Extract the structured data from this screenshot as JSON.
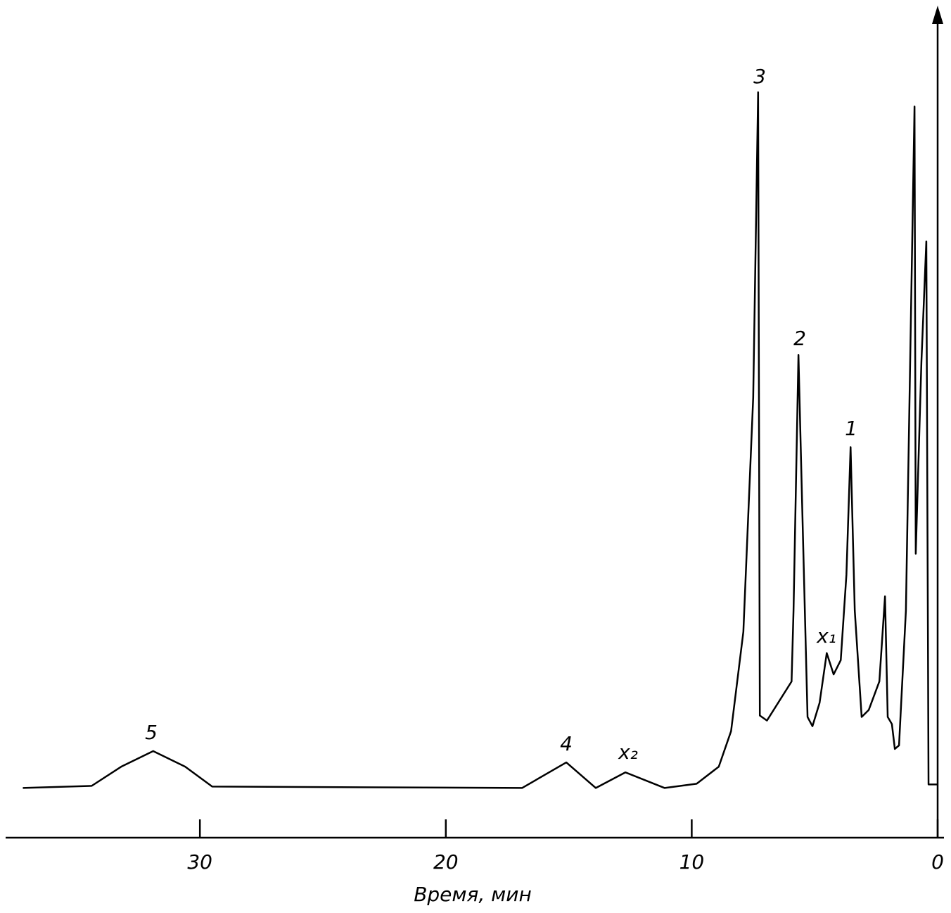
{
  "chart_data": {
    "type": "line",
    "x_label": "Время, мин",
    "xlim": [
      37.9,
      0
    ],
    "ylim": [
      -7,
      110
    ],
    "xticks": [
      30,
      20,
      10,
      0
    ],
    "x": [
      37.2,
      34.4,
      33.2,
      31.9,
      30.6,
      29.5,
      16.9,
      15.1,
      13.9,
      12.7,
      11.1,
      9.8,
      8.9,
      8.4,
      7.9,
      7.5,
      7.3,
      7.23,
      6.94,
      5.94,
      5.86,
      5.66,
      5.51,
      5.29,
      5.09,
      4.8,
      4.51,
      4.23,
      3.94,
      3.71,
      3.54,
      3.37,
      3.09,
      2.8,
      2.37,
      2.14,
      2.03,
      1.86,
      1.74,
      1.57,
      1.29,
      0.94,
      0.89,
      0.66,
      0.46,
      0.37,
      0
    ],
    "series": [
      {
        "color": "#000000",
        "values": [
          0,
          0.3,
          3,
          5.2,
          3,
          0.2,
          0,
          3.6,
          0,
          2.2,
          0,
          0.6,
          3,
          8,
          22,
          55,
          98,
          10.2,
          9.5,
          15,
          25,
          61,
          40,
          10,
          8.7,
          12,
          19,
          16,
          18,
          30,
          48,
          25,
          10,
          11,
          15,
          27,
          10,
          9,
          5.5,
          6,
          25,
          96,
          33,
          60,
          77,
          0.5,
          0.5
        ]
      }
    ],
    "annotations": [
      "5",
      "4",
      "x₂",
      "3",
      "2",
      "x₁",
      "1"
    ]
  }
}
